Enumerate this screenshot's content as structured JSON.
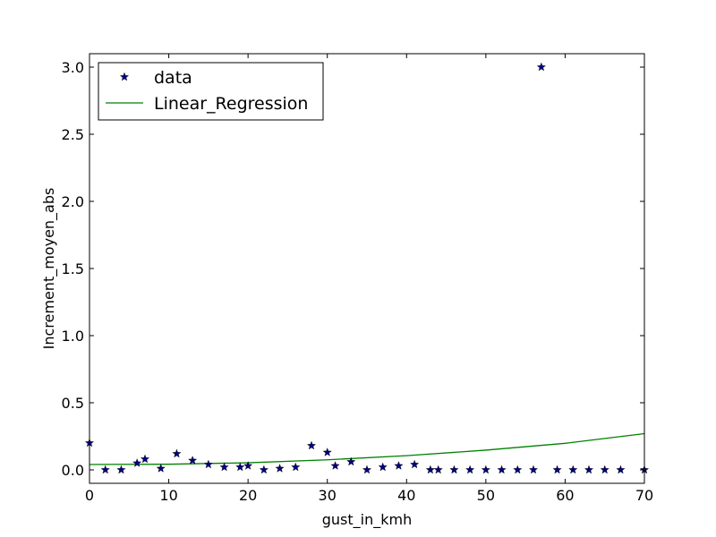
{
  "chart_data": {
    "type": "scatter",
    "xlabel": "gust_in_kmh",
    "ylabel": "Increment_moyen_abs",
    "xlim": [
      0,
      70
    ],
    "ylim": [
      -0.1,
      3.1
    ],
    "xticks": [
      "0",
      "10",
      "20",
      "30",
      "40",
      "50",
      "60",
      "70"
    ],
    "yticks": [
      "0.0",
      "0.5",
      "1.0",
      "1.5",
      "2.0",
      "2.5",
      "3.0"
    ],
    "legend_position": "top-left",
    "grid": false,
    "series": [
      {
        "name": "data",
        "kind": "scatter",
        "marker": "star",
        "color": "#00007f",
        "x": [
          0,
          2,
          4,
          6,
          7,
          9,
          11,
          13,
          15,
          17,
          19,
          20,
          22,
          24,
          26,
          28,
          30,
          31,
          33,
          35,
          37,
          39,
          41,
          43,
          44,
          46,
          48,
          50,
          52,
          54,
          56,
          57,
          59,
          61,
          63,
          65,
          67,
          70
        ],
        "y": [
          0.2,
          0.0,
          0.0,
          0.05,
          0.08,
          0.01,
          0.12,
          0.07,
          0.04,
          0.02,
          0.02,
          0.03,
          0.0,
          0.01,
          0.02,
          0.18,
          0.13,
          0.03,
          0.06,
          0.0,
          0.02,
          0.03,
          0.04,
          0.0,
          0.0,
          0.0,
          0.0,
          0.0,
          0.0,
          0.0,
          0.0,
          3.0,
          0.0,
          0.0,
          0.0,
          0.0,
          0.0,
          0.0
        ]
      },
      {
        "name": "Linear_Regression",
        "kind": "line",
        "color": "#008000",
        "x": [
          0,
          10,
          20,
          30,
          40,
          50,
          60,
          70
        ],
        "y": [
          0.04,
          0.042,
          0.053,
          0.075,
          0.106,
          0.147,
          0.198,
          0.27
        ]
      }
    ]
  }
}
